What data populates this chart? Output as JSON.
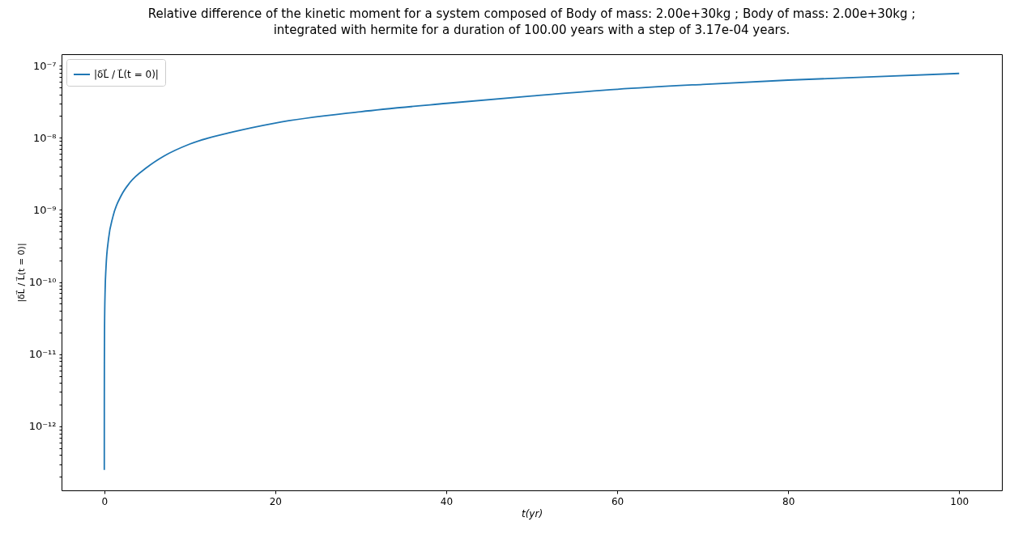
{
  "chart_data": {
    "type": "line",
    "title": "Relative difference of the kinetic moment for a system composed of Body of mass: 2.00e+30kg ; Body of mass: 2.00e+30kg ;\nintegrated with hermite for a duration of 100.00 years with a step of 3.17e-04 years.",
    "xlabel": "t(yr)",
    "ylabel": "|δL⃗ / L⃗(t = 0)|",
    "x": [
      0.000317,
      0.001,
      0.003,
      0.01,
      0.03,
      0.1,
      0.2,
      0.5,
      1,
      2,
      3,
      5,
      7,
      10,
      15,
      20,
      30,
      40,
      50,
      60,
      70,
      80,
      90,
      100
    ],
    "series": [
      {
        "name": "|δL⃗ / L⃗(t = 0)|",
        "color": "#1f77b4",
        "values": [
          2.5e-13,
          8e-13,
          2.4e-12,
          8e-12,
          2.4e-11,
          8e-11,
          1.6e-10,
          4e-10,
          8e-10,
          1.6e-09,
          2.4e-09,
          3.9e-09,
          5.6e-09,
          8.2e-09,
          1.2e-08,
          1.6e-08,
          2.3e-08,
          3e-08,
          3.8e-08,
          4.7e-08,
          5.5e-08,
          6.3e-08,
          7e-08,
          7.8e-08
        ]
      }
    ],
    "log": "y",
    "xlim": [
      -5,
      105
    ],
    "xticks": [
      0,
      20,
      40,
      60,
      80,
      100
    ],
    "ylim": [
      1.3e-13,
      1.44e-07
    ],
    "yticks": [
      {
        "value": 2e-13,
        "label": null
      },
      {
        "value": 3e-13,
        "label": null
      },
      {
        "value": 4e-13,
        "label": null
      },
      {
        "value": 5e-13,
        "label": null
      },
      {
        "value": 6e-13,
        "label": null
      },
      {
        "value": 7e-13,
        "label": null
      },
      {
        "value": 8e-13,
        "label": null
      },
      {
        "value": 9e-13,
        "label": null
      },
      {
        "value": 1e-12,
        "label": "10⁻¹²"
      },
      {
        "value": 2e-12,
        "label": null
      },
      {
        "value": 3e-12,
        "label": null
      },
      {
        "value": 4e-12,
        "label": null
      },
      {
        "value": 5e-12,
        "label": null
      },
      {
        "value": 6e-12,
        "label": null
      },
      {
        "value": 7e-12,
        "label": null
      },
      {
        "value": 8e-12,
        "label": null
      },
      {
        "value": 9e-12,
        "label": null
      },
      {
        "value": 1e-11,
        "label": "10⁻¹¹"
      },
      {
        "value": 2e-11,
        "label": null
      },
      {
        "value": 3e-11,
        "label": null
      },
      {
        "value": 4e-11,
        "label": null
      },
      {
        "value": 5e-11,
        "label": null
      },
      {
        "value": 6e-11,
        "label": null
      },
      {
        "value": 7e-11,
        "label": null
      },
      {
        "value": 8e-11,
        "label": null
      },
      {
        "value": 9e-11,
        "label": null
      },
      {
        "value": 1e-10,
        "label": "10⁻¹⁰"
      },
      {
        "value": 2e-10,
        "label": null
      },
      {
        "value": 3e-10,
        "label": null
      },
      {
        "value": 4e-10,
        "label": null
      },
      {
        "value": 5e-10,
        "label": null
      },
      {
        "value": 6e-10,
        "label": null
      },
      {
        "value": 7e-10,
        "label": null
      },
      {
        "value": 8e-10,
        "label": null
      },
      {
        "value": 9e-10,
        "label": null
      },
      {
        "value": 1e-09,
        "label": "10⁻⁹"
      },
      {
        "value": 2e-09,
        "label": null
      },
      {
        "value": 3e-09,
        "label": null
      },
      {
        "value": 4e-09,
        "label": null
      },
      {
        "value": 5e-09,
        "label": null
      },
      {
        "value": 6e-09,
        "label": null
      },
      {
        "value": 7e-09,
        "label": null
      },
      {
        "value": 8e-09,
        "label": null
      },
      {
        "value": 9e-09,
        "label": null
      },
      {
        "value": 1e-08,
        "label": "10⁻⁸"
      },
      {
        "value": 2e-08,
        "label": null
      },
      {
        "value": 3e-08,
        "label": null
      },
      {
        "value": 4e-08,
        "label": null
      },
      {
        "value": 5e-08,
        "label": null
      },
      {
        "value": 6e-08,
        "label": null
      },
      {
        "value": 7e-08,
        "label": null
      },
      {
        "value": 8e-08,
        "label": null
      },
      {
        "value": 9e-08,
        "label": null
      },
      {
        "value": 1e-07,
        "label": "10⁻⁷"
      }
    ],
    "legend": "top left"
  }
}
